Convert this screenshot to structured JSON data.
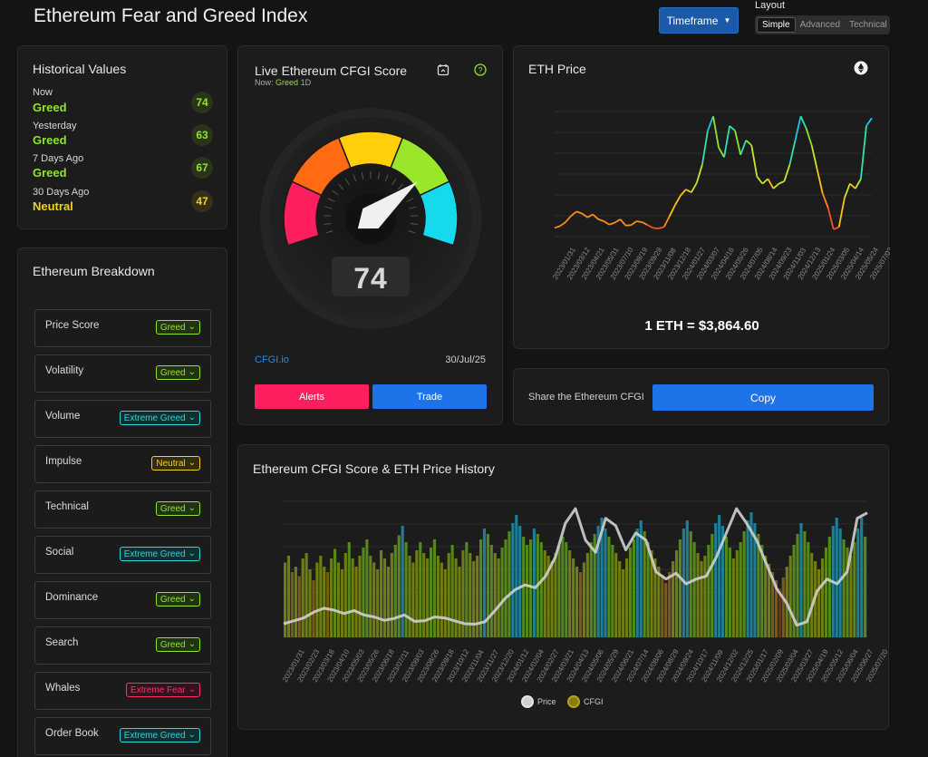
{
  "header": {
    "title": "Ethereum Fear and Greed Index",
    "timeframe_label": "Timeframe",
    "layout_label": "Layout",
    "layout_options": [
      "Simple",
      "Advanced",
      "Technical"
    ],
    "layout_selected": "Simple"
  },
  "historical": {
    "title": "Historical Values",
    "items": [
      {
        "label": "Now",
        "state": "Greed",
        "value": "74"
      },
      {
        "label": "Yesterday",
        "state": "Greed",
        "value": "63"
      },
      {
        "label": "7 Days Ago",
        "state": "Greed",
        "value": "67"
      },
      {
        "label": "30 Days Ago",
        "state": "Neutral",
        "value": "47"
      }
    ]
  },
  "breakdown": {
    "title": "Ethereum Breakdown",
    "items": [
      {
        "label": "Price Score",
        "badge": "Greed"
      },
      {
        "label": "Volatility",
        "badge": "Greed"
      },
      {
        "label": "Volume",
        "badge": "Extreme Greed"
      },
      {
        "label": "Impulse",
        "badge": "Neutral"
      },
      {
        "label": "Technical",
        "badge": "Greed"
      },
      {
        "label": "Social",
        "badge": "Extreme Greed"
      },
      {
        "label": "Dominance",
        "badge": "Greed"
      },
      {
        "label": "Search",
        "badge": "Greed"
      },
      {
        "label": "Whales",
        "badge": "Extreme Fear"
      },
      {
        "label": "Order Book",
        "badge": "Extreme Greed"
      }
    ]
  },
  "gauge": {
    "title": "Live Ethereum CFGI Score",
    "now_prefix": "Now:",
    "now_state": "Greed",
    "now_period": "1D",
    "score": "74",
    "source_link": "CFGI.io",
    "date": "30/Jul/25",
    "alerts_label": "Alerts",
    "trade_label": "Trade"
  },
  "eth_price": {
    "title": "ETH Price",
    "price_text": "1 ETH = $3,864.60"
  },
  "share": {
    "label": "Share the Ethereum CFGI",
    "copy_label": "Copy"
  },
  "history": {
    "title": "Ethereum CFGI Score & ETH Price History",
    "legend_price": "Price",
    "legend_cfgi": "CFGI"
  },
  "colors": {
    "greed": "#8ee62b",
    "neutral": "#f2d21a",
    "extreme_greed": "#2ad4e0",
    "extreme_fear": "#ff2e63",
    "accent": "#1d74e8",
    "alerts": "#ff1f5e"
  },
  "chart_data": [
    {
      "type": "line",
      "title": "ETH Price",
      "x_ticks": [
        "2023/01/31",
        "2023/03/12",
        "2023/04/21",
        "2023/05/31",
        "2023/07/10",
        "2023/08/19",
        "2023/09/28",
        "2023/11/08",
        "2023/12/18",
        "2024/01/27",
        "2024/03/07",
        "2024/04/16",
        "2024/05/26",
        "2024/07/05",
        "2024/08/14",
        "2024/09/23",
        "2024/11/03",
        "2024/12/13",
        "2025/01/24",
        "2025/03/05",
        "2025/04/14",
        "2025/05/24",
        "2025/07/03"
      ],
      "y_values": [
        1580,
        1620,
        1700,
        1830,
        1920,
        1880,
        1800,
        1860,
        1760,
        1720,
        1650,
        1690,
        1760,
        1630,
        1640,
        1720,
        1700,
        1640,
        1580,
        1570,
        1600,
        1820,
        2050,
        2250,
        2380,
        2320,
        2520,
        2900,
        3600,
        3900,
        3250,
        3050,
        3700,
        3600,
        3100,
        3400,
        3300,
        2650,
        2500,
        2600,
        2400,
        2500,
        2550,
        2900,
        3400,
        3900,
        3650,
        3300,
        2800,
        2300,
        2000,
        1550,
        1600,
        2200,
        2500,
        2400,
        2600,
        3700,
        3864
      ]
    },
    {
      "type": "bar",
      "title": "Ethereum CFGI Score & ETH Price History",
      "x_ticks": [
        "2023/01/31",
        "2023/02/23",
        "2023/03/18",
        "2023/04/10",
        "2023/05/03",
        "2023/05/26",
        "2023/06/18",
        "2023/07/11",
        "2023/08/03",
        "2023/08/26",
        "2023/09/18",
        "2023/10/12",
        "2023/11/04",
        "2023/11/27",
        "2023/12/20",
        "2024/01/12",
        "2024/02/04",
        "2024/02/27",
        "2024/03/21",
        "2024/04/13",
        "2024/05/06",
        "2024/05/29",
        "2024/06/21",
        "2024/07/14",
        "2024/08/06",
        "2024/08/29",
        "2024/09/24",
        "2024/10/17",
        "2024/11/09",
        "2024/12/02",
        "2024/12/25",
        "2025/01/17",
        "2025/02/09",
        "2025/03/04",
        "2025/03/27",
        "2025/04/19",
        "2025/05/12",
        "2025/06/04",
        "2025/06/27",
        "2025/07/20"
      ],
      "series": [
        {
          "name": "CFGI",
          "values": [
            55,
            60,
            48,
            52,
            45,
            58,
            62,
            50,
            42,
            55,
            60,
            52,
            48,
            58,
            65,
            55,
            50,
            62,
            70,
            58,
            52,
            60,
            66,
            72,
            60,
            55,
            50,
            64,
            58,
            52,
            62,
            68,
            75,
            82,
            70,
            60,
            55,
            64,
            70,
            62,
            58,
            66,
            72,
            60,
            55,
            50,
            62,
            68,
            58,
            52,
            64,
            70,
            62,
            56,
            60,
            72,
            80,
            76,
            68,
            62,
            58,
            66,
            72,
            78,
            84,
            90,
            82,
            74,
            68,
            72,
            80,
            76,
            70,
            64,
            60,
            56,
            62,
            68,
            74,
            70,
            64,
            58,
            52,
            48,
            55,
            62,
            70,
            76,
            82,
            88,
            80,
            74,
            68,
            62,
            56,
            50,
            58,
            66,
            72,
            80,
            86,
            78,
            70,
            64,
            58,
            52,
            46,
            40,
            48,
            56,
            64,
            72,
            80,
            86,
            78,
            70,
            62,
            56,
            60,
            68,
            76,
            84,
            90,
            82,
            74,
            66,
            58,
            64,
            70,
            78,
            86,
            92,
            84,
            76,
            68,
            60,
            54,
            48,
            42,
            36,
            44,
            52,
            60,
            68,
            76,
            84,
            78,
            70,
            62,
            56,
            50,
            58,
            66,
            74,
            82,
            88,
            80,
            72,
            66,
            60,
            70,
            80,
            88,
            74
          ]
        },
        {
          "name": "Price",
          "values": [
            1580,
            1640,
            1700,
            1820,
            1900,
            1860,
            1790,
            1850,
            1760,
            1720,
            1650,
            1690,
            1760,
            1630,
            1640,
            1720,
            1700,
            1640,
            1580,
            1570,
            1620,
            1850,
            2100,
            2280,
            2380,
            2320,
            2550,
            2950,
            3650,
            3950,
            3300,
            3050,
            3750,
            3600,
            3100,
            3450,
            3300,
            2650,
            2500,
            2620,
            2400,
            2500,
            2560,
            2950,
            3450,
            3950,
            3650,
            3300,
            2800,
            2300,
            2000,
            1550,
            1620,
            2250,
            2500,
            2400,
            2650,
            3750,
            3864
          ]
        }
      ]
    }
  ]
}
